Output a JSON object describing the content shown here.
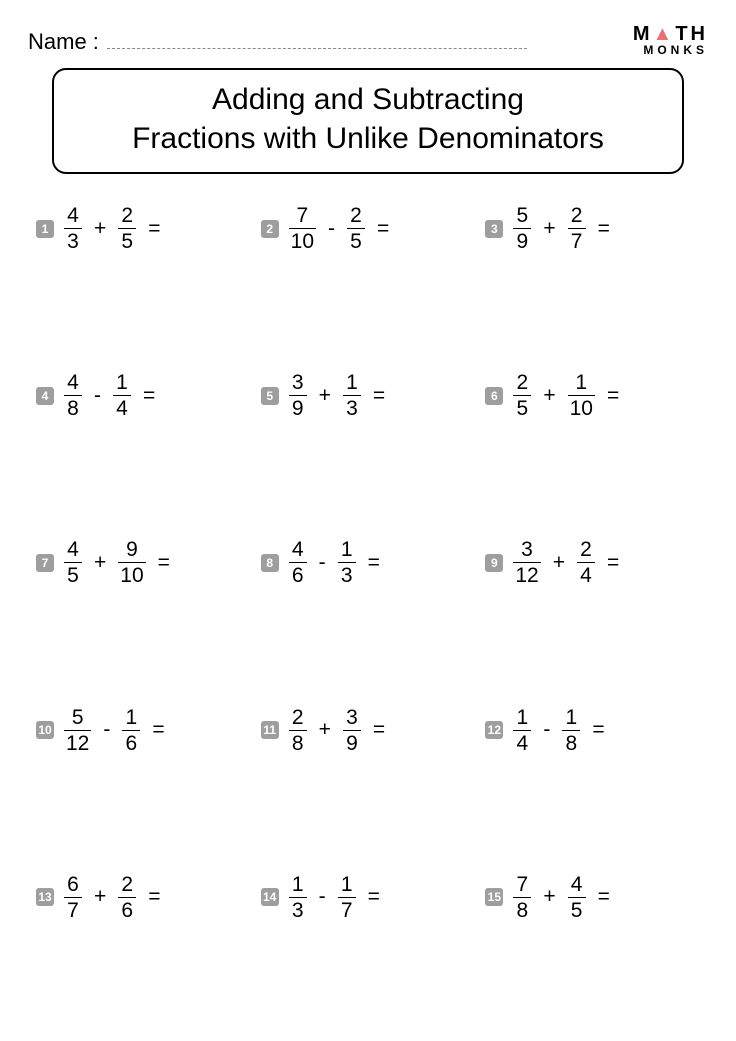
{
  "header": {
    "name_label": "Name :",
    "logo_row1_left": "M",
    "logo_row1_tri": "▲",
    "logo_row1_right": "TH",
    "logo_row2": "MONKS"
  },
  "title": {
    "line1": "Adding and Subtracting",
    "line2": "Fractions with Unlike Denominators"
  },
  "style": {
    "badge_bg": "#9e9e9e",
    "badge_fg": "#ffffff",
    "logo_accent": "#e57373",
    "page_bg": "#ffffff",
    "text_color": "#000000",
    "title_fontsize": 30,
    "body_fontsize": 21,
    "badge_fontsize": 12
  },
  "problems": [
    {
      "n": "1",
      "a_num": "4",
      "a_den": "3",
      "op": "+",
      "b_num": "2",
      "b_den": "5"
    },
    {
      "n": "2",
      "a_num": "7",
      "a_den": "10",
      "op": "-",
      "b_num": "2",
      "b_den": "5"
    },
    {
      "n": "3",
      "a_num": "5",
      "a_den": "9",
      "op": "+",
      "b_num": "2",
      "b_den": "7"
    },
    {
      "n": "4",
      "a_num": "4",
      "a_den": "8",
      "op": "-",
      "b_num": "1",
      "b_den": "4"
    },
    {
      "n": "5",
      "a_num": "3",
      "a_den": "9",
      "op": "+",
      "b_num": "1",
      "b_den": "3"
    },
    {
      "n": "6",
      "a_num": "2",
      "a_den": "5",
      "op": "+",
      "b_num": "1",
      "b_den": "10"
    },
    {
      "n": "7",
      "a_num": "4",
      "a_den": "5",
      "op": "+",
      "b_num": "9",
      "b_den": "10"
    },
    {
      "n": "8",
      "a_num": "4",
      "a_den": "6",
      "op": "-",
      "b_num": "1",
      "b_den": "3"
    },
    {
      "n": "9",
      "a_num": "3",
      "a_den": "12",
      "op": "+",
      "b_num": "2",
      "b_den": "4"
    },
    {
      "n": "10",
      "a_num": "5",
      "a_den": "12",
      "op": "-",
      "b_num": "1",
      "b_den": "6"
    },
    {
      "n": "11",
      "a_num": "2",
      "a_den": "8",
      "op": "+",
      "b_num": "3",
      "b_den": "9"
    },
    {
      "n": "12",
      "a_num": "1",
      "a_den": "4",
      "op": "-",
      "b_num": "1",
      "b_den": "8"
    },
    {
      "n": "13",
      "a_num": "6",
      "a_den": "7",
      "op": "+",
      "b_num": "2",
      "b_den": "6"
    },
    {
      "n": "14",
      "a_num": "1",
      "a_den": "3",
      "op": "-",
      "b_num": "1",
      "b_den": "7"
    },
    {
      "n": "15",
      "a_num": "7",
      "a_den": "8",
      "op": "+",
      "b_num": "4",
      "b_den": "5"
    }
  ],
  "equals": "="
}
